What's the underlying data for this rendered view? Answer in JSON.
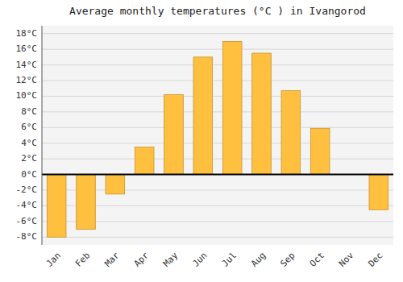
{
  "chart_data": {
    "type": "bar",
    "title": "Average monthly temperatures (°C ) in Ivangorod",
    "categories": [
      "Jan",
      "Feb",
      "Mar",
      "Apr",
      "May",
      "Jun",
      "Jul",
      "Aug",
      "Sep",
      "Oct",
      "Nov",
      "Dec"
    ],
    "values": [
      -8,
      -7,
      -2.5,
      3.5,
      10.2,
      15.0,
      17.0,
      15.5,
      10.7,
      5.9,
      0,
      -4.5
    ],
    "color": "#FFC040",
    "ylim": [
      -9,
      19
    ],
    "yticks": [
      {
        "value": -8,
        "label": "-8°C"
      },
      {
        "value": -6,
        "label": "-6°C"
      },
      {
        "value": -4,
        "label": "-4°C"
      },
      {
        "value": -2,
        "label": "-2°C"
      },
      {
        "value": 0,
        "label": "0°C"
      },
      {
        "value": 2,
        "label": "2°C"
      },
      {
        "value": 4,
        "label": "4°C"
      },
      {
        "value": 6,
        "label": "6°C"
      },
      {
        "value": 8,
        "label": "8°C"
      },
      {
        "value": 10,
        "label": "10°C"
      },
      {
        "value": 12,
        "label": "12°C"
      },
      {
        "value": 14,
        "label": "14°C"
      },
      {
        "value": 16,
        "label": "16°C"
      },
      {
        "value": 18,
        "label": "18°C"
      }
    ],
    "grid": true
  }
}
